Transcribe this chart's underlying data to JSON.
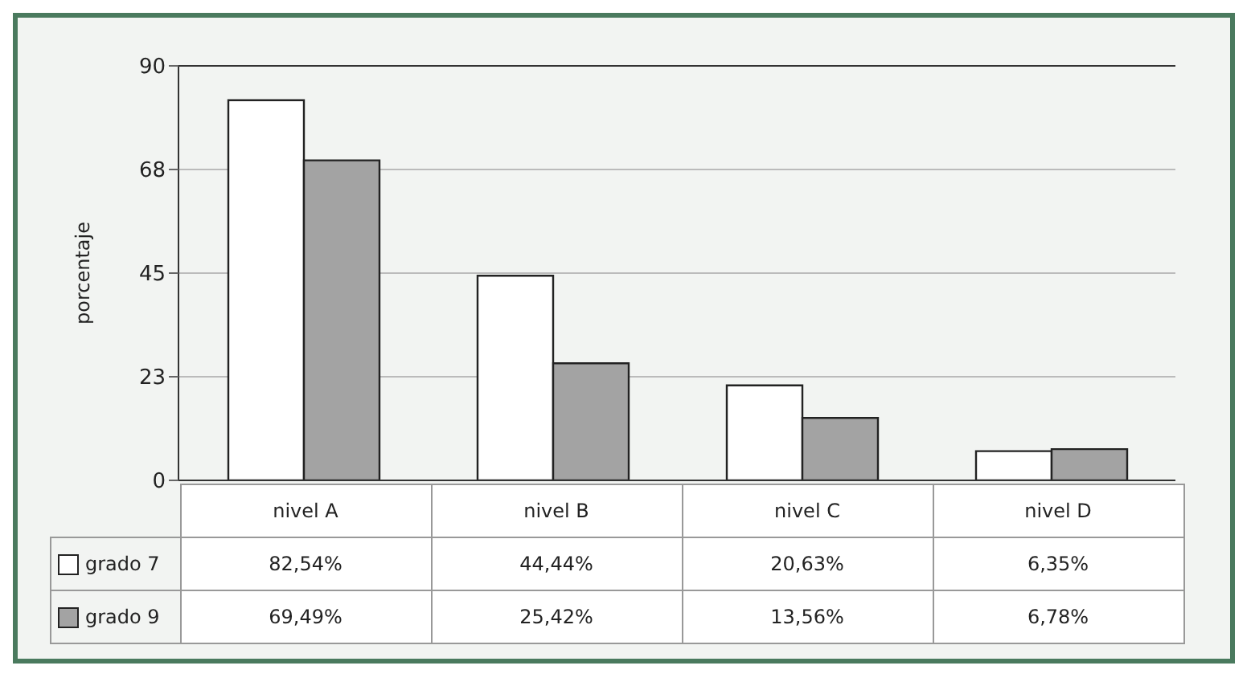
{
  "chart_data": {
    "type": "bar",
    "ylabel": "porcentaje",
    "categories": [
      "nivel A",
      "nivel B",
      "nivel C",
      "nivel D"
    ],
    "series": [
      {
        "name": "grado 7",
        "color": "#ffffff",
        "values": [
          82.54,
          44.44,
          20.63,
          6.35
        ],
        "value_labels": [
          "82,54%",
          "44,44%",
          "20,63%",
          "6,35%"
        ]
      },
      {
        "name": "grado 9",
        "color": "#a3a3a3",
        "values": [
          69.49,
          25.42,
          13.56,
          6.78
        ],
        "value_labels": [
          "69,49%",
          "25,42%",
          "13,56%",
          "6,78%"
        ]
      }
    ],
    "ylim": [
      0,
      90
    ],
    "yticks": [
      0,
      {
        "value": 22.5,
        "label": "23"
      },
      45,
      {
        "value": 67.5,
        "label": "68"
      },
      90
    ],
    "grid": "y",
    "legend": "bottom left"
  }
}
